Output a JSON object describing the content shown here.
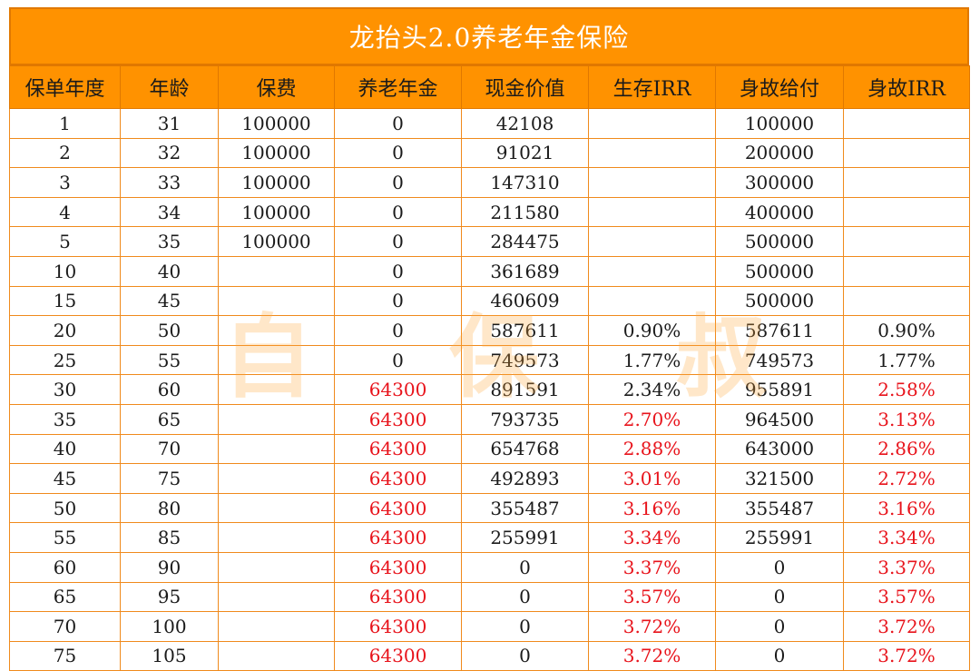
{
  "title": "龙抬头2.0养老年金保险",
  "watermark": [
    "自",
    "保",
    "叔"
  ],
  "colors": {
    "header_bg": "#ff9200",
    "border": "#f08a1c",
    "highlight_text": "#e8131b",
    "watermark": "#ffaa3c"
  },
  "columns": [
    "保单年度",
    "年龄",
    "保费",
    "养老年金",
    "现金价值",
    "生存IRR",
    "身故给付",
    "身故IRR"
  ],
  "rows": [
    {
      "year": "1",
      "age": "31",
      "premium": "100000",
      "annuity": "0",
      "cash_value": "42108",
      "survival_irr": "",
      "death_benefit": "100000",
      "death_irr": ""
    },
    {
      "year": "2",
      "age": "32",
      "premium": "100000",
      "annuity": "0",
      "cash_value": "91021",
      "survival_irr": "",
      "death_benefit": "200000",
      "death_irr": ""
    },
    {
      "year": "3",
      "age": "33",
      "premium": "100000",
      "annuity": "0",
      "cash_value": "147310",
      "survival_irr": "",
      "death_benefit": "300000",
      "death_irr": ""
    },
    {
      "year": "4",
      "age": "34",
      "premium": "100000",
      "annuity": "0",
      "cash_value": "211580",
      "survival_irr": "",
      "death_benefit": "400000",
      "death_irr": ""
    },
    {
      "year": "5",
      "age": "35",
      "premium": "100000",
      "annuity": "0",
      "cash_value": "284475",
      "survival_irr": "",
      "death_benefit": "500000",
      "death_irr": ""
    },
    {
      "year": "10",
      "age": "40",
      "premium": "",
      "annuity": "0",
      "cash_value": "361689",
      "survival_irr": "",
      "death_benefit": "500000",
      "death_irr": ""
    },
    {
      "year": "15",
      "age": "45",
      "premium": "",
      "annuity": "0",
      "cash_value": "460609",
      "survival_irr": "",
      "death_benefit": "500000",
      "death_irr": ""
    },
    {
      "year": "20",
      "age": "50",
      "premium": "",
      "annuity": "0",
      "cash_value": "587611",
      "survival_irr": "0.90%",
      "death_benefit": "587611",
      "death_irr": "0.90%"
    },
    {
      "year": "25",
      "age": "55",
      "premium": "",
      "annuity": "0",
      "cash_value": "749573",
      "survival_irr": "1.77%",
      "death_benefit": "749573",
      "death_irr": "1.77%"
    },
    {
      "year": "30",
      "age": "60",
      "premium": "",
      "annuity": "64300",
      "cash_value": "891591",
      "survival_irr": "2.34%",
      "death_benefit": "955891",
      "death_irr": "2.58%"
    },
    {
      "year": "35",
      "age": "65",
      "premium": "",
      "annuity": "64300",
      "cash_value": "793735",
      "survival_irr": "2.70%",
      "death_benefit": "964500",
      "death_irr": "3.13%"
    },
    {
      "year": "40",
      "age": "70",
      "premium": "",
      "annuity": "64300",
      "cash_value": "654768",
      "survival_irr": "2.88%",
      "death_benefit": "643000",
      "death_irr": "2.86%"
    },
    {
      "year": "45",
      "age": "75",
      "premium": "",
      "annuity": "64300",
      "cash_value": "492893",
      "survival_irr": "3.01%",
      "death_benefit": "321500",
      "death_irr": "2.72%"
    },
    {
      "year": "50",
      "age": "80",
      "premium": "",
      "annuity": "64300",
      "cash_value": "355487",
      "survival_irr": "3.16%",
      "death_benefit": "355487",
      "death_irr": "3.16%"
    },
    {
      "year": "55",
      "age": "85",
      "premium": "",
      "annuity": "64300",
      "cash_value": "255991",
      "survival_irr": "3.34%",
      "death_benefit": "255991",
      "death_irr": "3.34%"
    },
    {
      "year": "60",
      "age": "90",
      "premium": "",
      "annuity": "64300",
      "cash_value": "0",
      "survival_irr": "3.37%",
      "death_benefit": "0",
      "death_irr": "3.37%"
    },
    {
      "year": "65",
      "age": "95",
      "premium": "",
      "annuity": "64300",
      "cash_value": "0",
      "survival_irr": "3.57%",
      "death_benefit": "0",
      "death_irr": "3.57%"
    },
    {
      "year": "70",
      "age": "100",
      "premium": "",
      "annuity": "64300",
      "cash_value": "0",
      "survival_irr": "3.72%",
      "death_benefit": "0",
      "death_irr": "3.72%"
    },
    {
      "year": "75",
      "age": "105",
      "premium": "",
      "annuity": "64300",
      "cash_value": "0",
      "survival_irr": "3.72%",
      "death_benefit": "0",
      "death_irr": "3.72%"
    }
  ],
  "red_cells": {
    "annuity": [
      9,
      10,
      11,
      12,
      13,
      14,
      15,
      16,
      17,
      18
    ],
    "survival_irr": [
      10,
      11,
      12,
      13,
      14,
      15,
      16,
      17,
      18
    ],
    "death_irr": [
      9,
      10,
      11,
      12,
      13,
      14,
      15,
      16,
      17,
      18
    ]
  }
}
